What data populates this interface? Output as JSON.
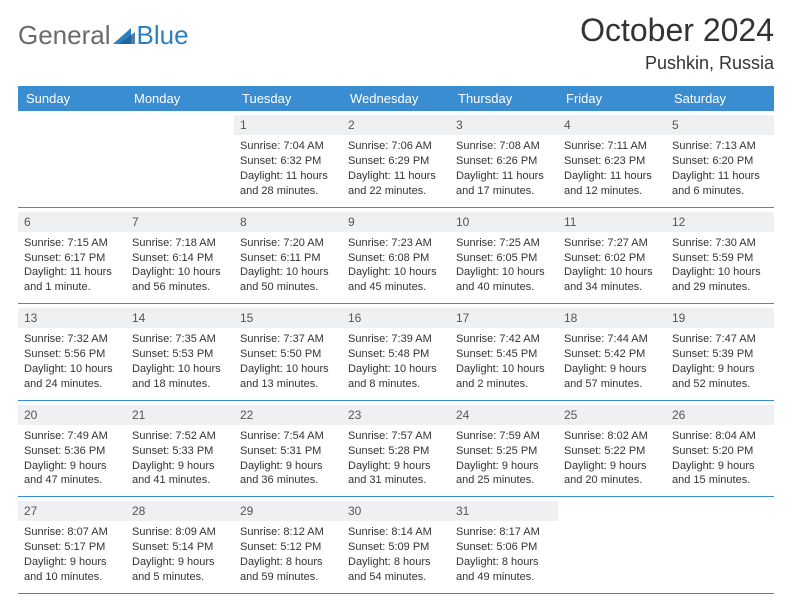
{
  "colors": {
    "header_bar": "#3a8dd0",
    "header_text": "#ffffff",
    "daynum_bg": "#eef0f2",
    "daynum_text": "#555555",
    "border": "#3a8dd0",
    "body_text": "#333333",
    "logo_gray": "#6b6b6b",
    "logo_blue": "#2f7fbf",
    "background": "#ffffff"
  },
  "typography": {
    "title_fontsize": 32,
    "location_fontsize": 18,
    "dayname_fontsize": 13,
    "cell_fontsize": 11,
    "logo_fontsize": 26
  },
  "logo": {
    "part1": "General",
    "part2": "Blue"
  },
  "title": {
    "month": "October 2024",
    "location": "Pushkin, Russia"
  },
  "daynames": [
    "Sunday",
    "Monday",
    "Tuesday",
    "Wednesday",
    "Thursday",
    "Friday",
    "Saturday"
  ],
  "weeks": [
    [
      null,
      null,
      {
        "n": "1",
        "sr": "Sunrise: 7:04 AM",
        "ss": "Sunset: 6:32 PM",
        "dl": "Daylight: 11 hours and 28 minutes."
      },
      {
        "n": "2",
        "sr": "Sunrise: 7:06 AM",
        "ss": "Sunset: 6:29 PM",
        "dl": "Daylight: 11 hours and 22 minutes."
      },
      {
        "n": "3",
        "sr": "Sunrise: 7:08 AM",
        "ss": "Sunset: 6:26 PM",
        "dl": "Daylight: 11 hours and 17 minutes."
      },
      {
        "n": "4",
        "sr": "Sunrise: 7:11 AM",
        "ss": "Sunset: 6:23 PM",
        "dl": "Daylight: 11 hours and 12 minutes."
      },
      {
        "n": "5",
        "sr": "Sunrise: 7:13 AM",
        "ss": "Sunset: 6:20 PM",
        "dl": "Daylight: 11 hours and 6 minutes."
      }
    ],
    [
      {
        "n": "6",
        "sr": "Sunrise: 7:15 AM",
        "ss": "Sunset: 6:17 PM",
        "dl": "Daylight: 11 hours and 1 minute."
      },
      {
        "n": "7",
        "sr": "Sunrise: 7:18 AM",
        "ss": "Sunset: 6:14 PM",
        "dl": "Daylight: 10 hours and 56 minutes."
      },
      {
        "n": "8",
        "sr": "Sunrise: 7:20 AM",
        "ss": "Sunset: 6:11 PM",
        "dl": "Daylight: 10 hours and 50 minutes."
      },
      {
        "n": "9",
        "sr": "Sunrise: 7:23 AM",
        "ss": "Sunset: 6:08 PM",
        "dl": "Daylight: 10 hours and 45 minutes."
      },
      {
        "n": "10",
        "sr": "Sunrise: 7:25 AM",
        "ss": "Sunset: 6:05 PM",
        "dl": "Daylight: 10 hours and 40 minutes."
      },
      {
        "n": "11",
        "sr": "Sunrise: 7:27 AM",
        "ss": "Sunset: 6:02 PM",
        "dl": "Daylight: 10 hours and 34 minutes."
      },
      {
        "n": "12",
        "sr": "Sunrise: 7:30 AM",
        "ss": "Sunset: 5:59 PM",
        "dl": "Daylight: 10 hours and 29 minutes."
      }
    ],
    [
      {
        "n": "13",
        "sr": "Sunrise: 7:32 AM",
        "ss": "Sunset: 5:56 PM",
        "dl": "Daylight: 10 hours and 24 minutes."
      },
      {
        "n": "14",
        "sr": "Sunrise: 7:35 AM",
        "ss": "Sunset: 5:53 PM",
        "dl": "Daylight: 10 hours and 18 minutes."
      },
      {
        "n": "15",
        "sr": "Sunrise: 7:37 AM",
        "ss": "Sunset: 5:50 PM",
        "dl": "Daylight: 10 hours and 13 minutes."
      },
      {
        "n": "16",
        "sr": "Sunrise: 7:39 AM",
        "ss": "Sunset: 5:48 PM",
        "dl": "Daylight: 10 hours and 8 minutes."
      },
      {
        "n": "17",
        "sr": "Sunrise: 7:42 AM",
        "ss": "Sunset: 5:45 PM",
        "dl": "Daylight: 10 hours and 2 minutes."
      },
      {
        "n": "18",
        "sr": "Sunrise: 7:44 AM",
        "ss": "Sunset: 5:42 PM",
        "dl": "Daylight: 9 hours and 57 minutes."
      },
      {
        "n": "19",
        "sr": "Sunrise: 7:47 AM",
        "ss": "Sunset: 5:39 PM",
        "dl": "Daylight: 9 hours and 52 minutes."
      }
    ],
    [
      {
        "n": "20",
        "sr": "Sunrise: 7:49 AM",
        "ss": "Sunset: 5:36 PM",
        "dl": "Daylight: 9 hours and 47 minutes."
      },
      {
        "n": "21",
        "sr": "Sunrise: 7:52 AM",
        "ss": "Sunset: 5:33 PM",
        "dl": "Daylight: 9 hours and 41 minutes."
      },
      {
        "n": "22",
        "sr": "Sunrise: 7:54 AM",
        "ss": "Sunset: 5:31 PM",
        "dl": "Daylight: 9 hours and 36 minutes."
      },
      {
        "n": "23",
        "sr": "Sunrise: 7:57 AM",
        "ss": "Sunset: 5:28 PM",
        "dl": "Daylight: 9 hours and 31 minutes."
      },
      {
        "n": "24",
        "sr": "Sunrise: 7:59 AM",
        "ss": "Sunset: 5:25 PM",
        "dl": "Daylight: 9 hours and 25 minutes."
      },
      {
        "n": "25",
        "sr": "Sunrise: 8:02 AM",
        "ss": "Sunset: 5:22 PM",
        "dl": "Daylight: 9 hours and 20 minutes."
      },
      {
        "n": "26",
        "sr": "Sunrise: 8:04 AM",
        "ss": "Sunset: 5:20 PM",
        "dl": "Daylight: 9 hours and 15 minutes."
      }
    ],
    [
      {
        "n": "27",
        "sr": "Sunrise: 8:07 AM",
        "ss": "Sunset: 5:17 PM",
        "dl": "Daylight: 9 hours and 10 minutes."
      },
      {
        "n": "28",
        "sr": "Sunrise: 8:09 AM",
        "ss": "Sunset: 5:14 PM",
        "dl": "Daylight: 9 hours and 5 minutes."
      },
      {
        "n": "29",
        "sr": "Sunrise: 8:12 AM",
        "ss": "Sunset: 5:12 PM",
        "dl": "Daylight: 8 hours and 59 minutes."
      },
      {
        "n": "30",
        "sr": "Sunrise: 8:14 AM",
        "ss": "Sunset: 5:09 PM",
        "dl": "Daylight: 8 hours and 54 minutes."
      },
      {
        "n": "31",
        "sr": "Sunrise: 8:17 AM",
        "ss": "Sunset: 5:06 PM",
        "dl": "Daylight: 8 hours and 49 minutes."
      },
      null,
      null
    ]
  ]
}
